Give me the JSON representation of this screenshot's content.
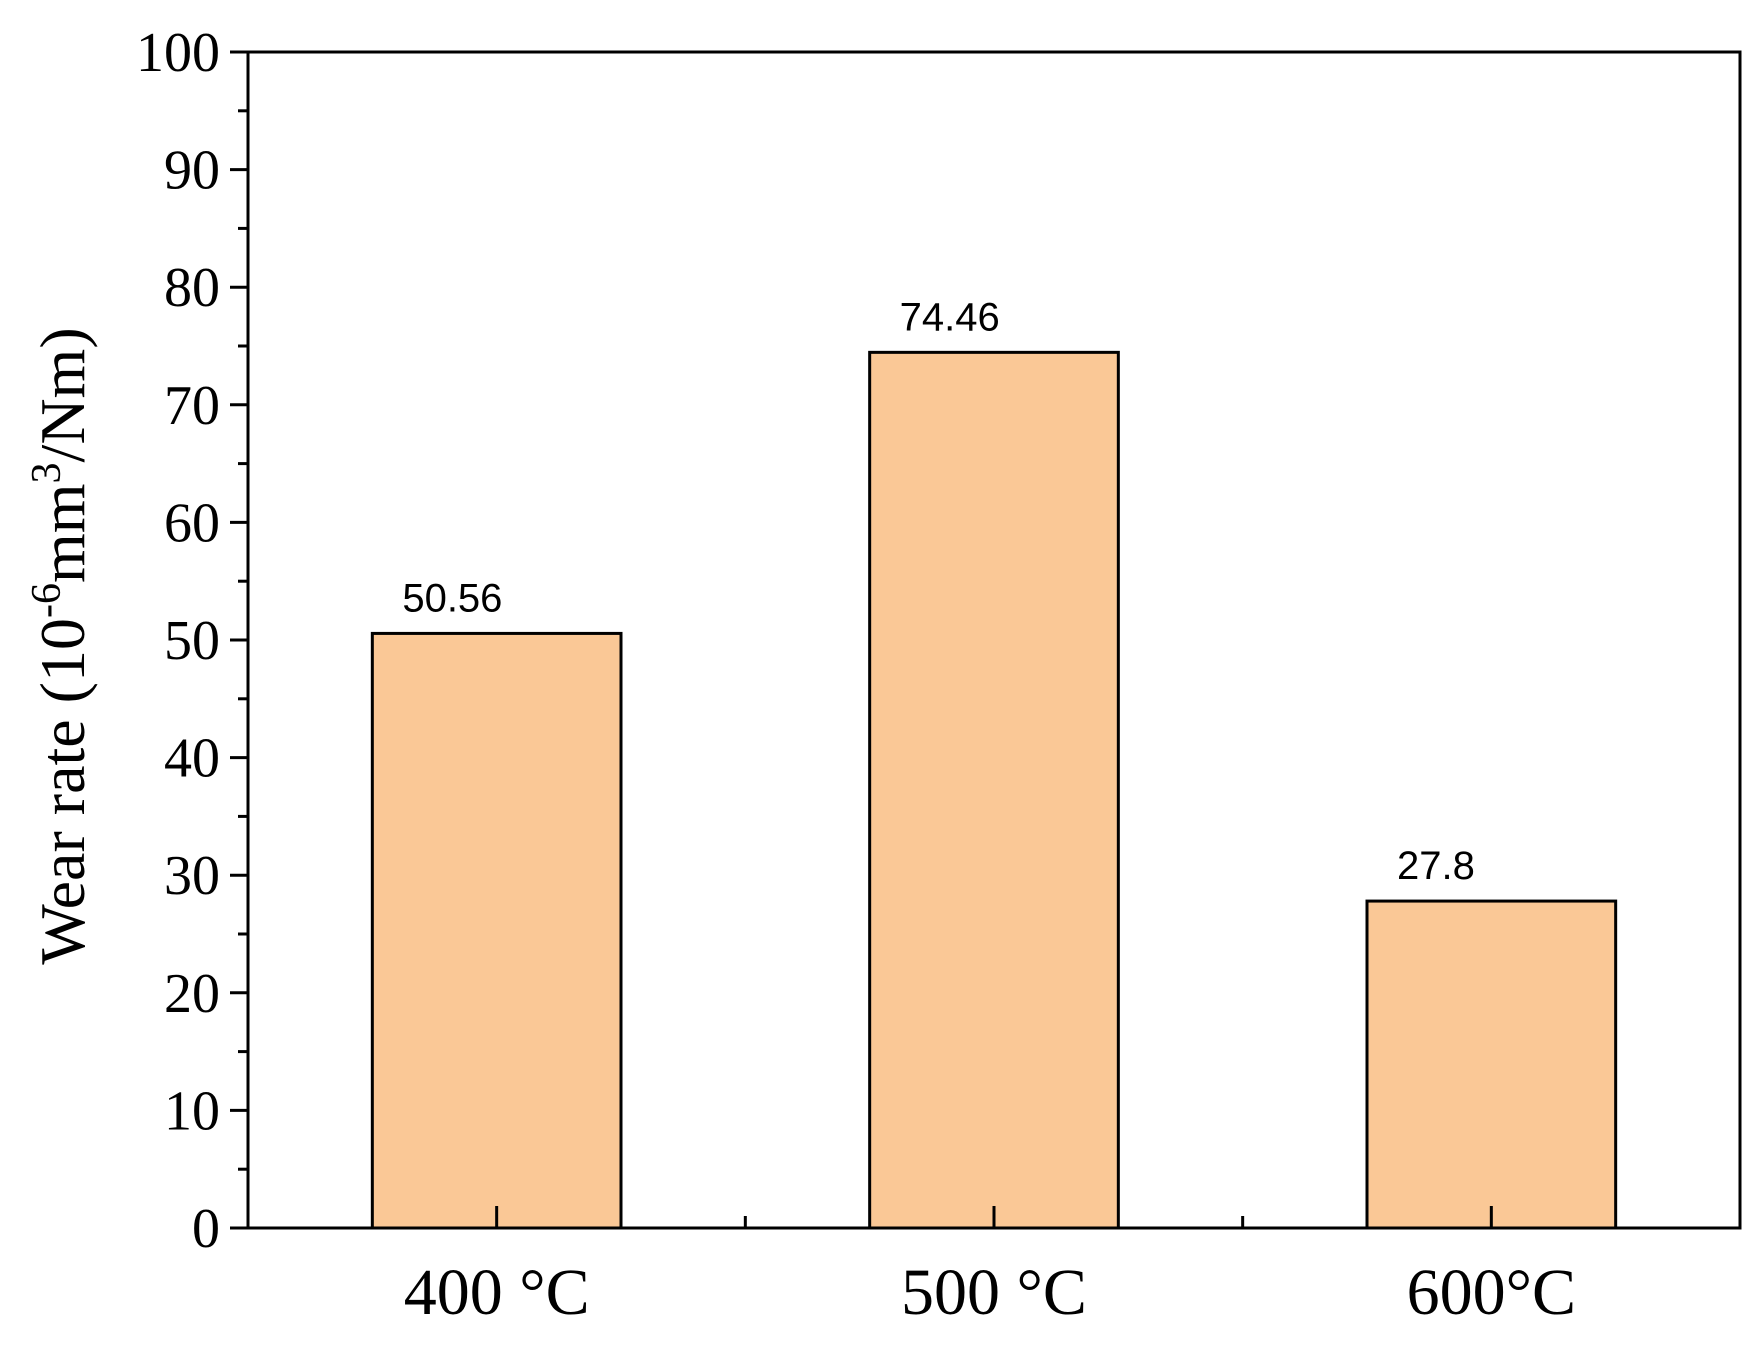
{
  "chart_data": {
    "type": "bar",
    "categories": [
      "400 °C",
      "500 °C",
      "600°C"
    ],
    "values": [
      50.56,
      74.46,
      27.8
    ],
    "data_labels": [
      "50.56",
      "74.46",
      "27.8"
    ],
    "ylabel": {
      "prefix": "Wear rate (10",
      "exp1": "-6",
      "middle": "mm",
      "exp2": "3",
      "suffix": "/Nm)"
    },
    "xlabel": "",
    "ylim": [
      0,
      100
    ],
    "yticks": [
      0,
      10,
      20,
      30,
      40,
      50,
      60,
      70,
      80,
      90,
      100
    ],
    "grid": false,
    "legend": "none",
    "bar_color": "#FAC896",
    "edge_color": "#000000"
  }
}
